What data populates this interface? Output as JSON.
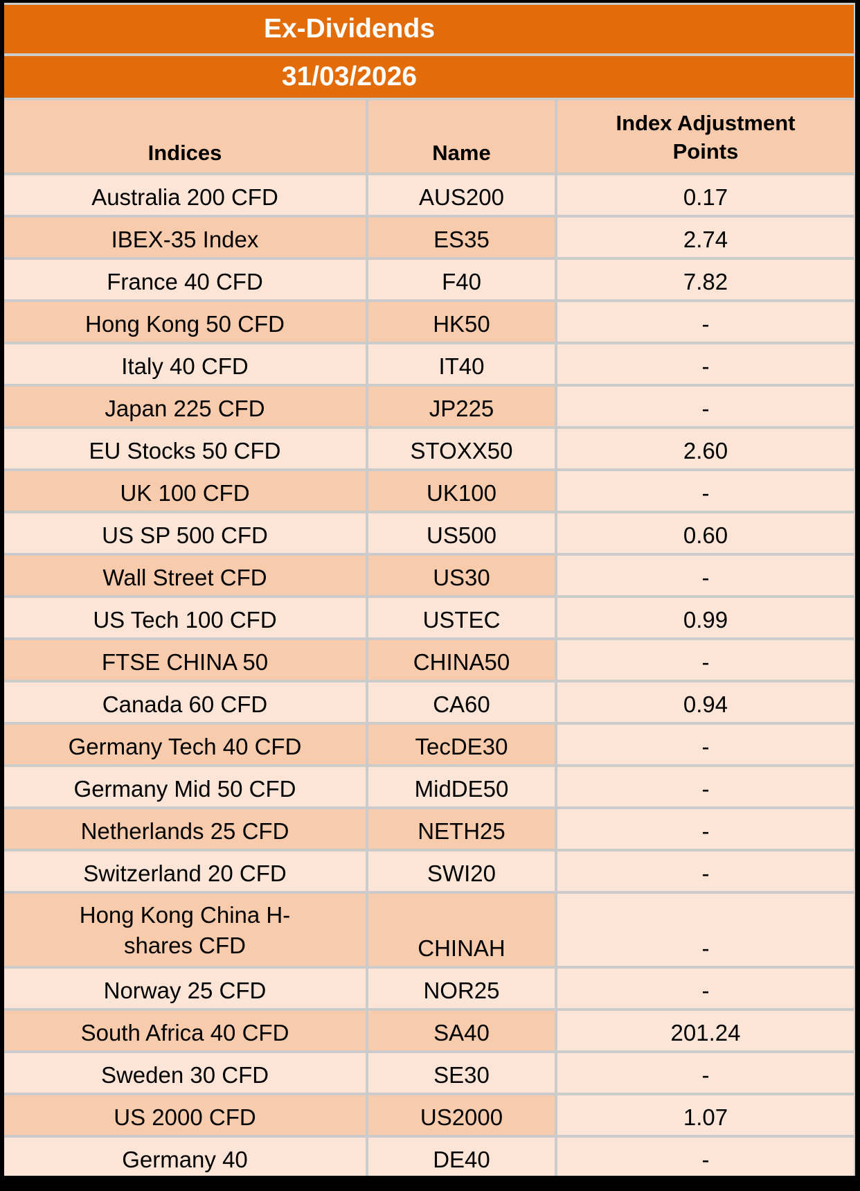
{
  "title": "Ex-Dividends",
  "date": "31/03/2026",
  "columns": {
    "indices": "Indices",
    "name": "Name",
    "points": "Index Adjustment Points"
  },
  "colors": {
    "orange": "#E36C0A",
    "row_light": "#FCE4D6",
    "row_dark": "#F8CBAD",
    "grid": "#CBCBCB",
    "frame": "#000000"
  },
  "rows": [
    {
      "indices": "Australia 200 CFD",
      "name": "AUS200",
      "points": "0.17"
    },
    {
      "indices": "IBEX-35 Index",
      "name": "ES35",
      "points": "2.74"
    },
    {
      "indices": "France 40 CFD",
      "name": "F40",
      "points": "7.82"
    },
    {
      "indices": "Hong Kong 50 CFD",
      "name": "HK50",
      "points": "-"
    },
    {
      "indices": "Italy 40 CFD",
      "name": "IT40",
      "points": "-"
    },
    {
      "indices": "Japan 225 CFD",
      "name": "JP225",
      "points": "-"
    },
    {
      "indices": "EU Stocks 50 CFD",
      "name": "STOXX50",
      "points": "2.60"
    },
    {
      "indices": "UK 100 CFD",
      "name": "UK100",
      "points": "-"
    },
    {
      "indices": "US SP 500 CFD",
      "name": "US500",
      "points": "0.60"
    },
    {
      "indices": "Wall Street CFD",
      "name": "US30",
      "points": "-"
    },
    {
      "indices": "US Tech 100 CFD",
      "name": "USTEC",
      "points": "0.99"
    },
    {
      "indices": "FTSE CHINA 50",
      "name": "CHINA50",
      "points": "-"
    },
    {
      "indices": "Canada 60 CFD",
      "name": "CA60",
      "points": "0.94"
    },
    {
      "indices": "Germany Tech 40 CFD",
      "name": "TecDE30",
      "points": "-"
    },
    {
      "indices": "Germany Mid 50 CFD",
      "name": "MidDE50",
      "points": "-"
    },
    {
      "indices": "Netherlands 25 CFD",
      "name": "NETH25",
      "points": "-"
    },
    {
      "indices": "Switzerland 20 CFD",
      "name": "SWI20",
      "points": "-"
    },
    {
      "indices": "Hong Kong China H-shares CFD",
      "name": "CHINAH",
      "points": "-",
      "tall": true
    },
    {
      "indices": "Norway 25 CFD",
      "name": "NOR25",
      "points": "-"
    },
    {
      "indices": "South Africa 40 CFD",
      "name": "SA40",
      "points": "201.24"
    },
    {
      "indices": "Sweden 30 CFD",
      "name": "SE30",
      "points": "-"
    },
    {
      "indices": "US 2000 CFD",
      "name": "US2000",
      "points": "1.07"
    },
    {
      "indices": "Germany 40",
      "name": "DE40",
      "points": "-"
    }
  ]
}
